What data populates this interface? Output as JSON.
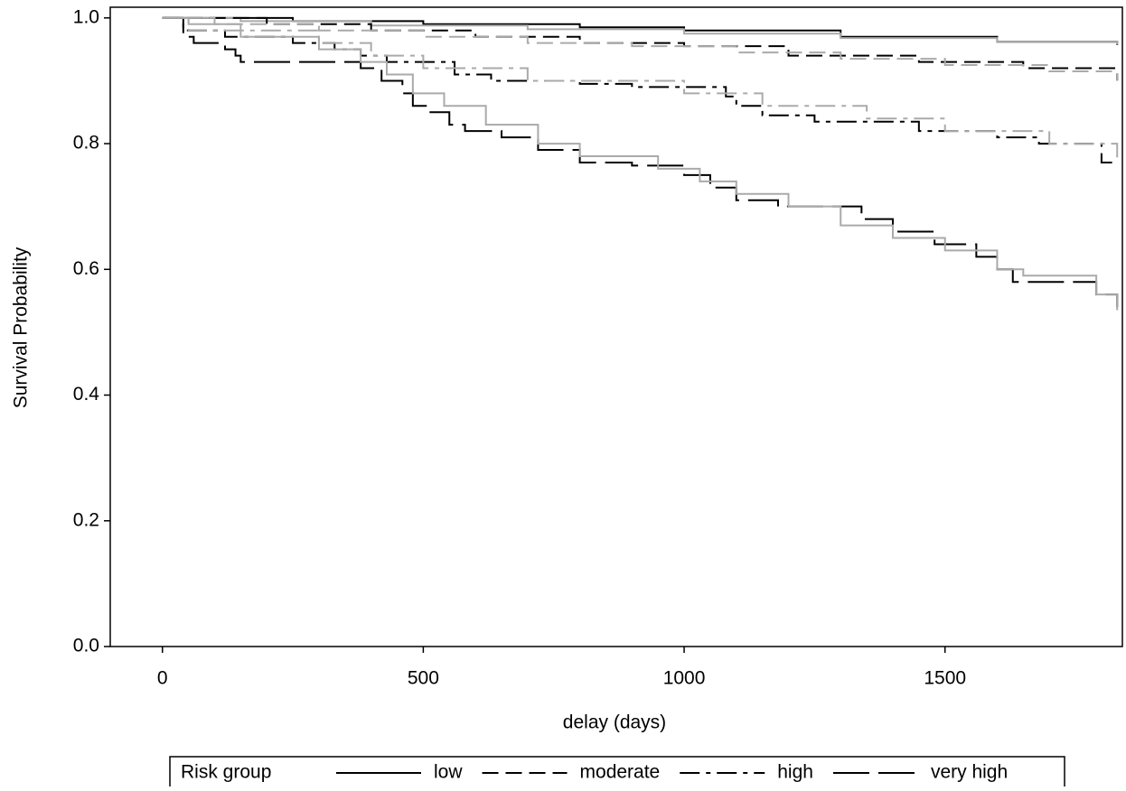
{
  "chart_data": {
    "type": "step",
    "xlabel": "delay (days)",
    "ylabel": "Survival Probability",
    "xlim": [
      -100,
      1840
    ],
    "ylim": [
      0,
      1.017
    ],
    "xticks": [
      0,
      500,
      1000,
      1500
    ],
    "yticks": [
      {
        "value": 0,
        "label": "0.0"
      },
      {
        "value": 0.2,
        "label": "0.2"
      },
      {
        "value": 0.4,
        "label": "0.4"
      },
      {
        "value": 0.6,
        "label": "0.6"
      },
      {
        "value": 0.8,
        "label": "0.8"
      },
      {
        "value": 1,
        "label": "1.0"
      }
    ],
    "legend_title": "Risk group",
    "legend_position": "bottom",
    "series": [
      {
        "name": "low",
        "color": "#000000",
        "dash": "none",
        "x": [
          0,
          250,
          500,
          800,
          1000,
          1300,
          1600,
          1830
        ],
        "values": [
          1.0,
          0.995,
          0.99,
          0.985,
          0.98,
          0.97,
          0.962,
          0.957
        ]
      },
      {
        "color": "#aaaaaa",
        "dash": "none",
        "x": [
          0,
          150,
          400,
          700,
          1000,
          1300,
          1600,
          1830
        ],
        "values": [
          1.0,
          0.995,
          0.988,
          0.982,
          0.975,
          0.968,
          0.962,
          0.958
        ]
      },
      {
        "name": "moderate",
        "color": "#000000",
        "dash": "18 8",
        "x": [
          0,
          200,
          400,
          600,
          800,
          1000,
          1200,
          1450,
          1650,
          1830
        ],
        "values": [
          1.0,
          0.99,
          0.98,
          0.97,
          0.96,
          0.955,
          0.94,
          0.93,
          0.92,
          0.9
        ]
      },
      {
        "color": "#aaaaaa",
        "dash": "18 8",
        "x": [
          0,
          100,
          300,
          500,
          700,
          900,
          1100,
          1300,
          1500,
          1700,
          1830
        ],
        "values": [
          1.0,
          0.99,
          0.98,
          0.97,
          0.96,
          0.955,
          0.945,
          0.935,
          0.925,
          0.915,
          0.9
        ]
      },
      {
        "name": "high",
        "color": "#000000",
        "dash": "22 7 5 7",
        "x": [
          0,
          40,
          120,
          250,
          330,
          380,
          430,
          560,
          630,
          800,
          900,
          1080,
          1100,
          1150,
          1250,
          1450,
          1600,
          1680,
          1800,
          1830
        ],
        "values": [
          1.0,
          0.98,
          0.97,
          0.96,
          0.95,
          0.94,
          0.93,
          0.91,
          0.9,
          0.895,
          0.89,
          0.875,
          0.86,
          0.845,
          0.835,
          0.82,
          0.81,
          0.8,
          0.77,
          0.77
        ]
      },
      {
        "color": "#aaaaaa",
        "dash": "22 7 5 7",
        "x": [
          0,
          50,
          300,
          400,
          500,
          700,
          1000,
          1150,
          1350,
          1500,
          1700,
          1830
        ],
        "values": [
          1.0,
          0.98,
          0.96,
          0.94,
          0.92,
          0.9,
          0.88,
          0.86,
          0.84,
          0.82,
          0.8,
          0.77
        ]
      },
      {
        "name": "very high",
        "color": "#000000",
        "dash": "40 10",
        "x": [
          0,
          40,
          60,
          120,
          140,
          150,
          380,
          420,
          460,
          480,
          510,
          550,
          580,
          650,
          720,
          800,
          900,
          1000,
          1050,
          1100,
          1180,
          1340,
          1400,
          1480,
          1560,
          1600,
          1630,
          1790,
          1830
        ],
        "values": [
          1.0,
          0.97,
          0.96,
          0.95,
          0.94,
          0.93,
          0.92,
          0.9,
          0.88,
          0.86,
          0.85,
          0.83,
          0.82,
          0.81,
          0.79,
          0.77,
          0.765,
          0.75,
          0.73,
          0.71,
          0.7,
          0.68,
          0.66,
          0.64,
          0.62,
          0.6,
          0.58,
          0.56,
          0.54
        ]
      },
      {
        "color": "#aaaaaa",
        "dash": "none",
        "x": [
          0,
          50,
          150,
          300,
          380,
          430,
          480,
          540,
          620,
          720,
          800,
          950,
          1030,
          1100,
          1200,
          1300,
          1400,
          1500,
          1600,
          1650,
          1790,
          1830
        ],
        "values": [
          1.0,
          0.99,
          0.97,
          0.95,
          0.93,
          0.91,
          0.88,
          0.86,
          0.83,
          0.8,
          0.78,
          0.76,
          0.74,
          0.72,
          0.7,
          0.67,
          0.65,
          0.63,
          0.6,
          0.59,
          0.56,
          0.535
        ]
      }
    ]
  }
}
